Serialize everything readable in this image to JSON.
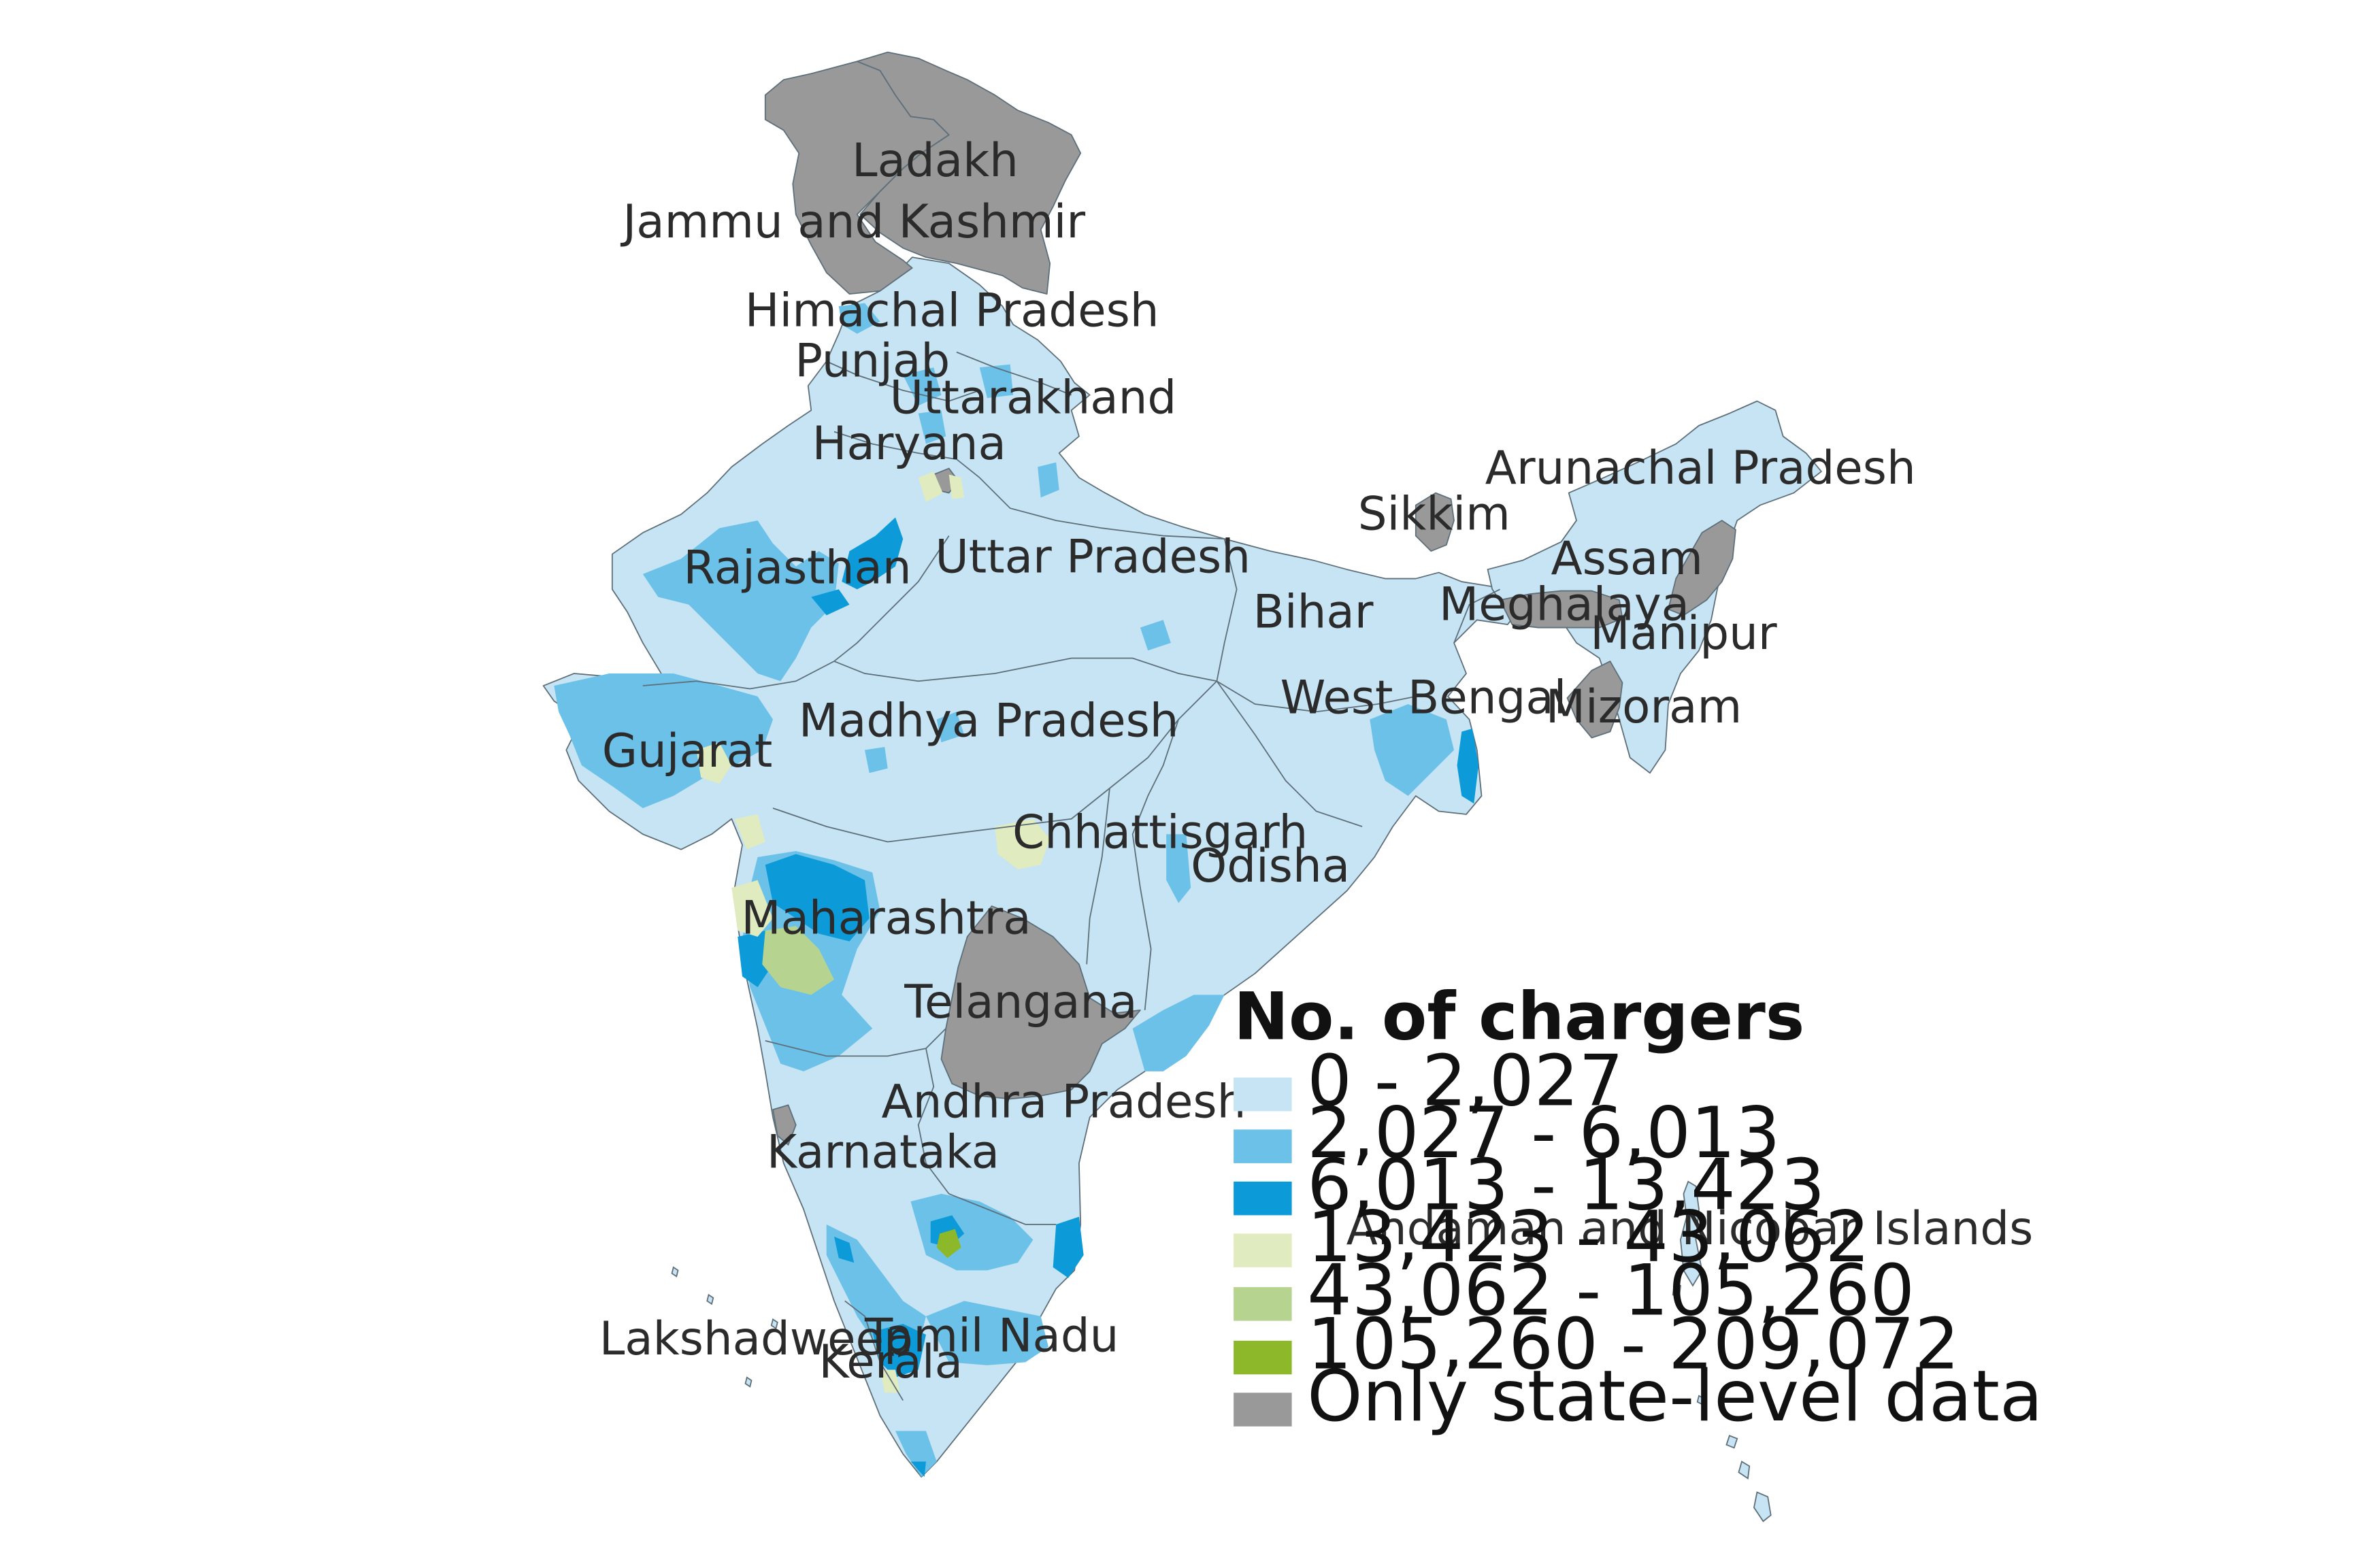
{
  "map": {
    "regions": [
      {
        "id": "ladakh",
        "label": "Ladakh",
        "class": "state_only"
      },
      {
        "id": "jammu-and-kashmir",
        "label": "Jammu and Kashmir",
        "class": "state_only"
      },
      {
        "id": "himachal-pradesh",
        "label": "Himachal Pradesh",
        "class": "0 - 2,027"
      },
      {
        "id": "punjab",
        "label": "Punjab",
        "class": "0 - 2,027"
      },
      {
        "id": "uttarakhand",
        "label": "Uttarakhand",
        "class": "0 - 2,027"
      },
      {
        "id": "haryana",
        "label": "Haryana",
        "class": "0 - 2,027"
      },
      {
        "id": "rajasthan",
        "label": "Rajasthan",
        "class": "0 - 2,027"
      },
      {
        "id": "uttar-pradesh",
        "label": "Uttar Pradesh",
        "class": "0 - 2,027"
      },
      {
        "id": "bihar",
        "label": "Bihar",
        "class": "0 - 2,027"
      },
      {
        "id": "sikkim",
        "label": "Sikkim",
        "class": "state_only"
      },
      {
        "id": "arunachal-pradesh",
        "label": "Arunachal Pradesh",
        "class": "0 - 2,027"
      },
      {
        "id": "assam",
        "label": "Assam",
        "class": "0 - 2,027"
      },
      {
        "id": "meghalaya",
        "label": "Meghalaya",
        "class": "state_only"
      },
      {
        "id": "manipur",
        "label": "Manipur",
        "class": "0 - 2,027"
      },
      {
        "id": "mizoram",
        "label": "Mizoram",
        "class": "state_only"
      },
      {
        "id": "west-bengal",
        "label": "West Bengal",
        "class": "0 - 2,027"
      },
      {
        "id": "gujarat",
        "label": "Gujarat",
        "class": "2,027 - 6,013"
      },
      {
        "id": "madhya-pradesh",
        "label": "Madhya Pradesh",
        "class": "0 - 2,027"
      },
      {
        "id": "chhattisgarh",
        "label": "Chhattisgarh",
        "class": "0 - 2,027"
      },
      {
        "id": "odisha",
        "label": "Odisha",
        "class": "0 - 2,027"
      },
      {
        "id": "maharashtra",
        "label": "Maharashtra",
        "class": "2,027 - 6,013"
      },
      {
        "id": "telangana",
        "label": "Telangana",
        "class": "state_only"
      },
      {
        "id": "andhra-pradesh",
        "label": "Andhra Pradesh",
        "class": "0 - 2,027"
      },
      {
        "id": "karnataka",
        "label": "Karnataka",
        "class": "0 - 2,027"
      },
      {
        "id": "tamil-nadu",
        "label": "Tamil Nadu",
        "class": "0 - 2,027"
      },
      {
        "id": "kerala",
        "label": "Kerala",
        "class": "2,027 - 6,013"
      },
      {
        "id": "lakshadweep",
        "label": "Lakshadweep",
        "class": "0 - 2,027"
      },
      {
        "id": "andaman-and-nicobar",
        "label": "Andaman and Nicobar Islands",
        "class": "0 - 2,027"
      }
    ]
  },
  "legend": {
    "title": "No. of chargers",
    "items": [
      {
        "label": "0 - 2,027",
        "color": "#c6e4f3"
      },
      {
        "label": "2,027 - 6,013",
        "color": "#6cc1e8"
      },
      {
        "label": "6,013 - 13,423",
        "color": "#0c9bd8"
      },
      {
        "label": "13,423 - 43,062",
        "color": "#e0ebc0"
      },
      {
        "label": "43,062 - 105,260",
        "color": "#b6d48f"
      },
      {
        "label": "105,260 - 209,072",
        "color": "#8db82a"
      },
      {
        "label": "Only state-level data",
        "color": "#999999"
      }
    ]
  }
}
